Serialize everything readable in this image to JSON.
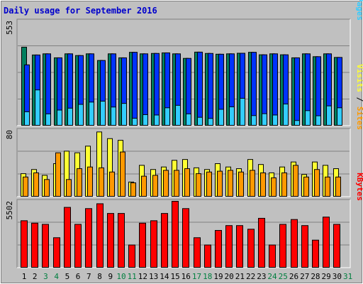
{
  "chart_data": {
    "type": "bar",
    "title": "Daily usage for September 2016",
    "days": [
      "1",
      "2",
      "3",
      "4",
      "5",
      "6",
      "7",
      "8",
      "9",
      "10",
      "11",
      "12",
      "13",
      "14",
      "15",
      "16",
      "17",
      "18",
      "19",
      "20",
      "21",
      "22",
      "23",
      "24",
      "25",
      "26",
      "27",
      "28",
      "29",
      "30",
      "31"
    ],
    "weekend_days": [
      "3",
      "4",
      "10",
      "11",
      "17",
      "18",
      "24",
      "25",
      "31"
    ],
    "colors": {
      "title": "#0000cc",
      "hits": "#007f5f",
      "files": "#0033ff",
      "pages": "#33ccff",
      "visits": "#ffff33",
      "sites": "#ff9900",
      "kbytes": "#ff0000",
      "weekday_label": "#000000",
      "weekend_label": "#007f3f"
    },
    "panels": [
      {
        "id": "usage",
        "max_label": "553",
        "max": 553,
        "series": [
          {
            "name": "Hits",
            "values": [
              415,
              374,
              380,
              359,
              380,
              371,
              380,
              345,
              380,
              359,
              388,
              380,
              382,
              385,
              380,
              356,
              389,
              382,
              378,
              380,
              383,
              388,
              375,
              380,
              375,
              359,
              380,
              365,
              380,
              361
            ]
          },
          {
            "name": "Files",
            "values": [
              322,
              374,
              380,
              359,
              380,
              371,
              380,
              345,
              380,
              359,
              388,
              380,
              382,
              385,
              380,
              356,
              389,
              382,
              378,
              380,
              383,
              388,
              375,
              380,
              375,
              359,
              380,
              365,
              380,
              361
            ]
          },
          {
            "name": "Pages",
            "values": [
              75,
              190,
              64,
              84,
              94,
              114,
              126,
              131,
              100,
              119,
              41,
              60,
              58,
              96,
              109,
              64,
              46,
              40,
              88,
              101,
              146,
              55,
              65,
              58,
              116,
              29,
              81,
              54,
              106,
              96
            ]
          }
        ],
        "legend": [
          {
            "text": "Pages",
            "color": "#33ccff"
          },
          {
            "text": " / ",
            "color": "#000000"
          },
          {
            "text": "Files",
            "color": "#0033ff"
          },
          {
            "text": " / ",
            "color": "#000000"
          },
          {
            "text": "Hits",
            "color": "#007f5f"
          }
        ]
      },
      {
        "id": "visits",
        "max_label": "80",
        "max": 80,
        "series": [
          {
            "name": "Visits",
            "values": [
              28,
              33,
              26,
              40,
              55,
              53,
              61,
              78,
              70,
              68,
              18,
              38,
              33,
              36,
              44,
              45,
              35,
              33,
              40,
              36,
              34,
              45,
              39,
              29,
              36,
              42,
              27,
              42,
              38,
              34
            ]
          },
          {
            "name": "Sites",
            "values": [
              24,
              29,
              21,
              53,
              21,
              34,
              36,
              35,
              30,
              54,
              17,
              25,
              26,
              32,
              32,
              34,
              28,
              30,
              31,
              32,
              30,
              32,
              29,
              23,
              29,
              38,
              24,
              33,
              24,
              24
            ]
          }
        ],
        "legend": [
          {
            "text": "Sites",
            "color": "#ff9900"
          },
          {
            "text": " / ",
            "color": "#000000"
          },
          {
            "text": "Visits",
            "color": "#ffff33"
          }
        ]
      },
      {
        "id": "kbytes",
        "max_label": "5502",
        "max": 5502,
        "series": [
          {
            "name": "KBytes",
            "values": [
              3900,
              3700,
              3600,
              2500,
              5000,
              3600,
              4900,
              5300,
              4500,
              4500,
              1900,
              3700,
              3900,
              4500,
              5502,
              4900,
              2500,
              1900,
              3100,
              3500,
              3500,
              3200,
              4100,
              1900,
              3600,
              4000,
              3500,
              2300,
              4200,
              3600
            ]
          }
        ],
        "legend": [
          {
            "text": "KBytes",
            "color": "#ff0000"
          }
        ]
      }
    ]
  }
}
